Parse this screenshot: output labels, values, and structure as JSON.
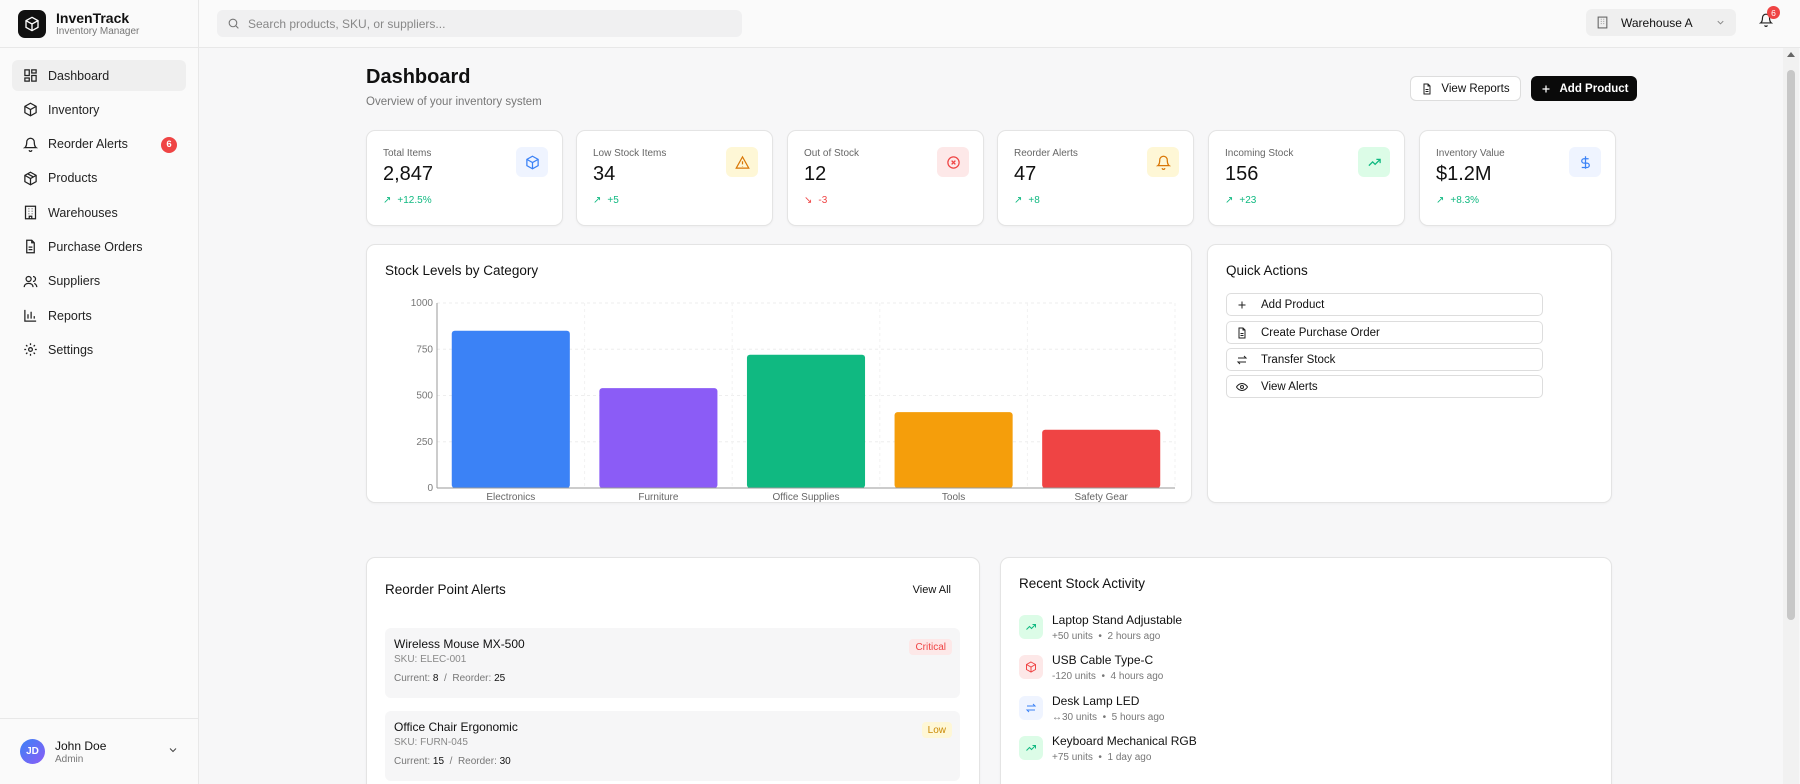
{
  "brand": {
    "name": "InvenTrack",
    "subtitle": "Inventory Manager"
  },
  "nav": [
    {
      "label": "Dashboard",
      "icon": "dashboard-icon",
      "active": true
    },
    {
      "label": "Inventory",
      "icon": "box-icon"
    },
    {
      "label": "Reorder Alerts",
      "icon": "bell-icon",
      "badge": "6"
    },
    {
      "label": "Products",
      "icon": "package-icon"
    },
    {
      "label": "Warehouses",
      "icon": "building-icon"
    },
    {
      "label": "Purchase Orders",
      "icon": "document-icon"
    },
    {
      "label": "Suppliers",
      "icon": "users-icon"
    },
    {
      "label": "Reports",
      "icon": "bar-chart-icon"
    },
    {
      "label": "Settings",
      "icon": "gear-icon"
    }
  ],
  "user": {
    "initials": "JD",
    "name": "John Doe",
    "role": "Admin"
  },
  "topbar": {
    "search_placeholder": "Search products, SKU, or suppliers...",
    "warehouse": "Warehouse A",
    "notifications": "6"
  },
  "page": {
    "title": "Dashboard",
    "subtitle": "Overview of your inventory system",
    "view_reports": "View Reports",
    "add_product": "Add Product"
  },
  "stats": [
    {
      "label": "Total Items",
      "value": "2,847",
      "change": "+12.5%",
      "trend": "up",
      "icon": "cube-icon",
      "color": "#3b82f6",
      "bg": "#eff4ff"
    },
    {
      "label": "Low Stock Items",
      "value": "34",
      "change": "+5",
      "trend": "up",
      "icon": "warning-icon",
      "color": "#d97706",
      "bg": "#fef7d6"
    },
    {
      "label": "Out of Stock",
      "value": "12",
      "change": "-3",
      "trend": "down",
      "icon": "x-circle-icon",
      "color": "#ef4444",
      "bg": "#fde8e8"
    },
    {
      "label": "Reorder Alerts",
      "value": "47",
      "change": "+8",
      "trend": "up",
      "icon": "bell-icon",
      "color": "#d97706",
      "bg": "#fef7d6"
    },
    {
      "label": "Incoming Stock",
      "value": "156",
      "change": "+23",
      "trend": "up",
      "icon": "trending-up-icon",
      "color": "#10b981",
      "bg": "#dcfce7"
    },
    {
      "label": "Inventory Value",
      "value": "$1.2M",
      "change": "+8.3%",
      "trend": "up",
      "icon": "dollar-icon",
      "color": "#3b82f6",
      "bg": "#eff4ff"
    }
  ],
  "stock_chart": {
    "title": "Stock Levels by Category"
  },
  "chart_data": {
    "type": "bar",
    "title": "Stock Levels by Category",
    "categories": [
      "Electronics",
      "Furniture",
      "Office Supplies",
      "Tools",
      "Safety Gear"
    ],
    "values": [
      850,
      540,
      720,
      410,
      315
    ],
    "colors": [
      "#3b82f6",
      "#8b5cf6",
      "#10b981",
      "#f59e0b",
      "#ef4444"
    ],
    "yticks": [
      "0",
      "250",
      "500",
      "750",
      "1000"
    ],
    "ylim": [
      0,
      1000
    ],
    "grid": true
  },
  "quick_actions": {
    "title": "Quick Actions",
    "items": [
      {
        "label": "Add Product",
        "icon": "plus-icon"
      },
      {
        "label": "Create Purchase Order",
        "icon": "document-icon"
      },
      {
        "label": "Transfer Stock",
        "icon": "transfer-icon"
      },
      {
        "label": "View Alerts",
        "icon": "eye-icon"
      }
    ]
  },
  "reorder_alerts": {
    "title": "Reorder Point Alerts",
    "view_all": "View All",
    "current_label": "Current:",
    "reorder_label": "Reorder:",
    "items": [
      {
        "name": "Wireless Mouse MX-500",
        "sku": "SKU: ELEC-001",
        "current": "8",
        "reorder": "25",
        "tag": "Critical",
        "tag_color": "#ef4444",
        "tag_bg": "#fde8e8"
      },
      {
        "name": "Office Chair Ergonomic",
        "sku": "SKU: FURN-045",
        "current": "15",
        "reorder": "30",
        "tag": "Low",
        "tag_color": "#ca8a04",
        "tag_bg": "#fef7d6"
      }
    ]
  },
  "activity": {
    "title": "Recent Stock Activity",
    "items": [
      {
        "name": "Laptop Stand Adjustable",
        "qty": "+50 units",
        "time": "2 hours ago",
        "icon": "trending-up-icon",
        "color": "#10b981",
        "bg": "#dcfce7"
      },
      {
        "name": "USB Cable Type-C",
        "qty": "-120 units",
        "time": "4 hours ago",
        "icon": "box-icon",
        "color": "#ef4444",
        "bg": "#fde8e8"
      },
      {
        "name": "Desk Lamp LED",
        "qty": "↔30 units",
        "time": "5 hours ago",
        "icon": "transfer-icon",
        "color": "#3b82f6",
        "bg": "#eff4ff"
      },
      {
        "name": "Keyboard Mechanical RGB",
        "qty": "+75 units",
        "time": "1 day ago",
        "icon": "trending-up-icon",
        "color": "#10b981",
        "bg": "#dcfce7"
      }
    ]
  }
}
